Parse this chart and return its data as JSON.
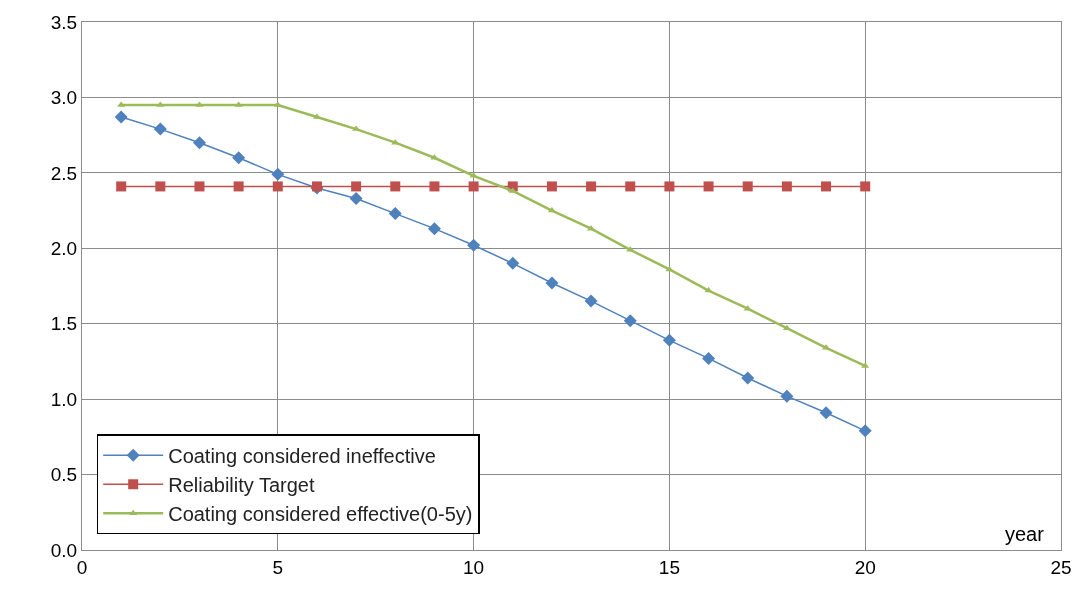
{
  "chart_data": {
    "type": "line",
    "xlabel": "year",
    "x": [
      1,
      2,
      3,
      4,
      5,
      6,
      7,
      8,
      9,
      10,
      11,
      12,
      13,
      14,
      15,
      16,
      17,
      18,
      19,
      20
    ],
    "xlim": [
      0,
      25
    ],
    "xticks": [
      0,
      5,
      10,
      15,
      20,
      25
    ],
    "ylim": [
      0,
      3.5
    ],
    "yticks": [
      {
        "value": 0,
        "label": "0.0"
      },
      {
        "value": 0.5,
        "label": "0.5"
      },
      {
        "value": 1,
        "label": "1.0"
      },
      {
        "value": 1.5,
        "label": "1.5"
      },
      {
        "value": 2,
        "label": "2.0"
      },
      {
        "value": 2.5,
        "label": "2.5"
      },
      {
        "value": 3,
        "label": "3.0"
      },
      {
        "value": 3.5,
        "label": "3.5"
      }
    ],
    "grid": true,
    "legend": "bottom left",
    "line_style": "solid",
    "series": [
      {
        "name": "Coating considered ineffective",
        "color": "#4f81bd",
        "marker": "diamond",
        "values": [
          2.87,
          2.79,
          2.7,
          2.6,
          2.49,
          2.4,
          2.33,
          2.23,
          2.13,
          2.02,
          1.9,
          1.77,
          1.65,
          1.52,
          1.39,
          1.27,
          1.14,
          1.02,
          0.91,
          0.79
        ]
      },
      {
        "name": "Reliability Target",
        "color": "#c0504d",
        "marker": "square",
        "values": [
          2.41,
          2.41,
          2.41,
          2.41,
          2.41,
          2.41,
          2.41,
          2.41,
          2.41,
          2.41,
          2.41,
          2.41,
          2.41,
          2.41,
          2.41,
          2.41,
          2.41,
          2.41,
          2.41,
          2.41
        ]
      },
      {
        "name": "Coating considered effective(0-5y)",
        "color": "#9bbb59",
        "marker": "triangle",
        "values": [
          2.95,
          2.95,
          2.95,
          2.95,
          2.95,
          2.87,
          2.79,
          2.7,
          2.6,
          2.48,
          2.38,
          2.25,
          2.13,
          1.99,
          1.86,
          1.72,
          1.6,
          1.47,
          1.34,
          1.22
        ]
      }
    ]
  }
}
